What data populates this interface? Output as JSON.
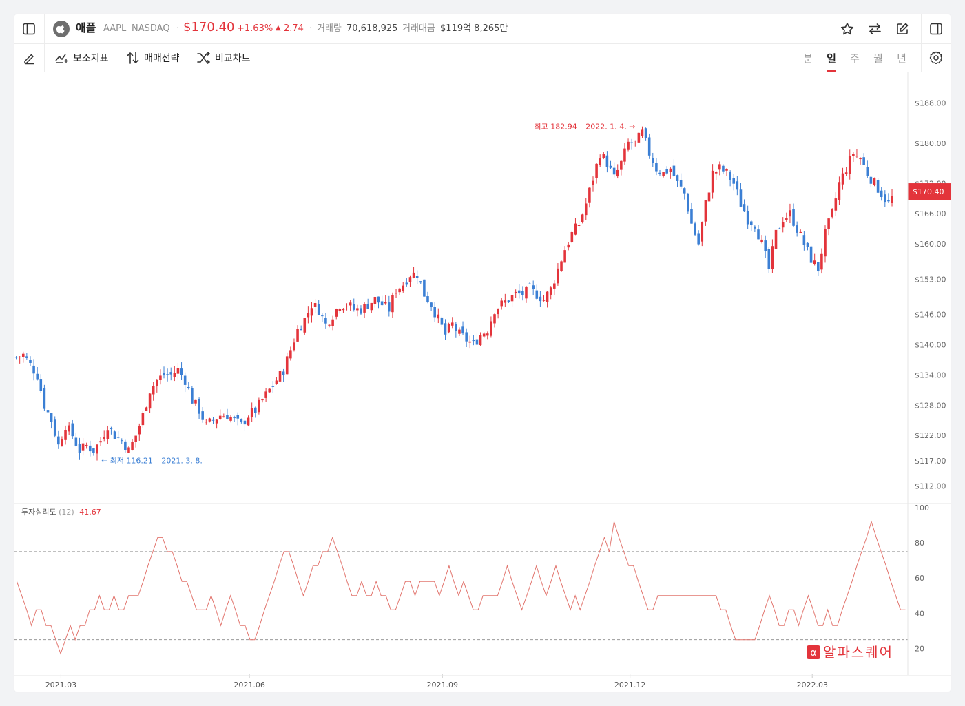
{
  "header": {
    "company": "애플",
    "ticker": "AAPL",
    "exchange": "NASDAQ",
    "price": "$170.40",
    "change_pct": "+1.63%",
    "change_abs": "2.74",
    "volume_label": "거래량",
    "volume_value": "70,618,925",
    "turnover_label": "거래대금",
    "turnover_value": "$119억 8,265만",
    "icons": [
      "sidebar-left-icon",
      "apple-logo-icon",
      "star-icon",
      "swap-icon",
      "edit-icon",
      "sidebar-right-icon"
    ]
  },
  "toolbar": {
    "draw_icon": "pencil-icon",
    "indicators": "보조지표",
    "strategy": "매매전략",
    "compare": "비교차트",
    "periods": [
      "분",
      "일",
      "주",
      "월",
      "년"
    ],
    "active_period": "일",
    "settings_icon": "gear-icon"
  },
  "colors": {
    "up": "#e3343b",
    "down": "#3b7fd4",
    "accent": "#e3343b",
    "psych_line": "#e2766f"
  },
  "chart_data": [
    {
      "type": "candlestick",
      "y_axis_ticks": [
        "$188.00",
        "$180.00",
        "$172.00",
        "$166.00",
        "$160.00",
        "$153.00",
        "$146.00",
        "$140.00",
        "$134.00",
        "$128.00",
        "$122.00",
        "$117.00",
        "$112.00"
      ],
      "ylim": [
        110,
        192
      ],
      "x_axis_ticks": [
        "2021.03",
        "2021.06",
        "2021.09",
        "2021.12",
        "2022.03"
      ],
      "current_price_label": "$170.40",
      "high_annotation": "최고 182.94 – 2022. 1. 4.",
      "low_annotation": "최저 116.21 – 2021. 3. 8.",
      "close_path": [
        [
          0,
          137.5
        ],
        [
          2,
          138
        ],
        [
          4,
          136
        ],
        [
          6,
          134
        ],
        [
          8,
          128
        ],
        [
          10,
          125
        ],
        [
          12,
          120
        ],
        [
          14,
          124
        ],
        [
          16,
          122
        ],
        [
          18,
          119
        ],
        [
          20,
          120
        ],
        [
          22,
          119
        ],
        [
          24,
          121
        ],
        [
          26,
          124
        ],
        [
          28,
          122
        ],
        [
          30,
          121
        ],
        [
          32,
          119
        ],
        [
          34,
          122
        ],
        [
          36,
          126
        ],
        [
          38,
          131
        ],
        [
          40,
          133
        ],
        [
          42,
          134
        ],
        [
          44,
          134
        ],
        [
          46,
          135
        ],
        [
          48,
          133
        ],
        [
          50,
          129
        ],
        [
          52,
          127
        ],
        [
          54,
          124
        ],
        [
          56,
          125
        ],
        [
          58,
          126
        ],
        [
          60,
          126
        ],
        [
          62,
          125
        ],
        [
          64,
          124
        ],
        [
          66,
          126
        ],
        [
          68,
          127
        ],
        [
          70,
          129
        ],
        [
          72,
          131
        ],
        [
          74,
          133
        ],
        [
          76,
          135
        ],
        [
          78,
          139
        ],
        [
          80,
          143
        ],
        [
          82,
          145
        ],
        [
          84,
          148
        ],
        [
          86,
          147
        ],
        [
          88,
          144
        ],
        [
          90,
          146
        ],
        [
          92,
          148
        ],
        [
          94,
          148
        ],
        [
          96,
          147
        ],
        [
          98,
          147
        ],
        [
          100,
          148
        ],
        [
          102,
          149
        ],
        [
          104,
          148
        ],
        [
          106,
          147
        ],
        [
          108,
          151
        ],
        [
          110,
          152
        ],
        [
          112,
          154
        ],
        [
          114,
          154
        ],
        [
          116,
          150
        ],
        [
          118,
          148
        ],
        [
          120,
          145
        ],
        [
          122,
          142
        ],
        [
          124,
          144
        ],
        [
          126,
          142
        ],
        [
          128,
          141
        ],
        [
          130,
          140
        ],
        [
          132,
          142
        ],
        [
          134,
          143
        ],
        [
          136,
          147
        ],
        [
          138,
          148
        ],
        [
          140,
          149
        ],
        [
          142,
          150
        ],
        [
          144,
          150
        ],
        [
          146,
          151
        ],
        [
          148,
          150
        ],
        [
          150,
          149
        ],
        [
          152,
          151
        ],
        [
          154,
          155
        ],
        [
          156,
          159
        ],
        [
          158,
          162
        ],
        [
          160,
          164
        ],
        [
          162,
          168
        ],
        [
          164,
          173
        ],
        [
          166,
          178
        ],
        [
          168,
          176
        ],
        [
          170,
          173
        ],
        [
          172,
          176
        ],
        [
          174,
          180
        ],
        [
          176,
          180
        ],
        [
          178,
          182
        ],
        [
          180,
          178
        ],
        [
          182,
          175
        ],
        [
          184,
          174
        ],
        [
          186,
          175
        ],
        [
          188,
          172
        ],
        [
          190,
          170
        ],
        [
          192,
          164
        ],
        [
          194,
          160
        ],
        [
          196,
          168
        ],
        [
          198,
          174
        ],
        [
          200,
          175
        ],
        [
          202,
          174
        ],
        [
          204,
          172
        ],
        [
          206,
          168
        ],
        [
          208,
          165
        ],
        [
          210,
          164
        ],
        [
          212,
          160
        ],
        [
          214,
          155
        ],
        [
          216,
          162
        ],
        [
          218,
          165
        ],
        [
          220,
          166
        ],
        [
          222,
          163
        ],
        [
          224,
          160
        ],
        [
          226,
          157
        ],
        [
          228,
          155
        ],
        [
          230,
          162
        ],
        [
          232,
          166
        ],
        [
          234,
          172
        ],
        [
          236,
          175
        ],
        [
          238,
          178
        ],
        [
          240,
          177
        ],
        [
          242,
          174
        ],
        [
          244,
          172
        ],
        [
          246,
          170
        ],
        [
          248,
          168
        ],
        [
          250,
          170.4
        ]
      ]
    },
    {
      "type": "line",
      "title": "투자심리도",
      "param": "(12)",
      "last_value": "41.67",
      "ylim": [
        10,
        100
      ],
      "y_axis_ticks": [
        100,
        80,
        60,
        40,
        20
      ],
      "ref_lines": [
        75,
        25
      ],
      "values": [
        58,
        50,
        42,
        33,
        42,
        42,
        33,
        33,
        25,
        17,
        25,
        33,
        25,
        33,
        33,
        42,
        42,
        50,
        42,
        42,
        50,
        42,
        42,
        50,
        50,
        50,
        58,
        67,
        75,
        83,
        83,
        75,
        75,
        67,
        58,
        58,
        50,
        42,
        42,
        42,
        50,
        42,
        33,
        42,
        50,
        42,
        33,
        33,
        25,
        25,
        33,
        42,
        50,
        58,
        67,
        75,
        75,
        67,
        58,
        50,
        58,
        67,
        67,
        75,
        75,
        83,
        75,
        67,
        58,
        50,
        50,
        58,
        50,
        50,
        58,
        50,
        50,
        42,
        42,
        50,
        58,
        58,
        50,
        58,
        58,
        58,
        58,
        50,
        58,
        67,
        58,
        50,
        58,
        50,
        42,
        42,
        50,
        50,
        50,
        50,
        58,
        67,
        58,
        50,
        42,
        50,
        58,
        67,
        58,
        50,
        58,
        67,
        58,
        50,
        42,
        50,
        42,
        50,
        58,
        67,
        75,
        83,
        75,
        92,
        83,
        75,
        67,
        67,
        58,
        50,
        42,
        42,
        50,
        50,
        50,
        50,
        50,
        50,
        50,
        50,
        50,
        50,
        50,
        50,
        50,
        42,
        42,
        33,
        25,
        25,
        25,
        25,
        25,
        33,
        42,
        50,
        42,
        33,
        33,
        42,
        42,
        33,
        42,
        50,
        42,
        33,
        33,
        42,
        33,
        33,
        42,
        50,
        58,
        67,
        75,
        83,
        92,
        83,
        75,
        67,
        58,
        50,
        42,
        42
      ]
    }
  ],
  "watermark": "알파스퀘어"
}
